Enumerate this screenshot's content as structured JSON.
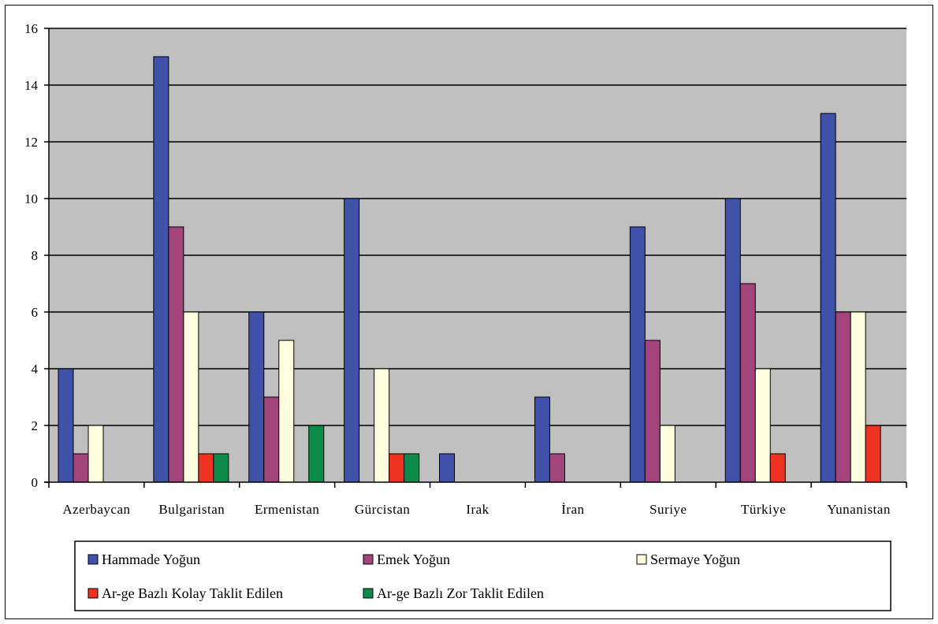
{
  "chart_data": {
    "type": "bar",
    "title": "",
    "xlabel": "",
    "ylabel": "",
    "ylim": [
      0,
      16
    ],
    "yticks": [
      0,
      2,
      4,
      6,
      8,
      10,
      12,
      14,
      16
    ],
    "grid": true,
    "legend_position": "bottom",
    "plot_background": "#c0c0c0",
    "categories": [
      "Azerbaycan",
      "Bulgaristan",
      "Ermenistan",
      "Gürcistan",
      "Irak",
      "İran",
      "Suriye",
      "Türkiye",
      "Yunanistan"
    ],
    "series": [
      {
        "name": "Hammade Yoğun",
        "color": "#3f51a8",
        "values": [
          4,
          15,
          6,
          10,
          1,
          3,
          9,
          10,
          13
        ]
      },
      {
        "name": "Emek Yoğun",
        "color": "#a3447b",
        "values": [
          1,
          9,
          3,
          0,
          0,
          1,
          5,
          7,
          6
        ]
      },
      {
        "name": "Sermaye Yoğun",
        "color": "#ffffe0",
        "values": [
          2,
          6,
          5,
          4,
          0,
          0,
          2,
          4,
          6
        ]
      },
      {
        "name": "Ar-ge Bazlı Kolay Taklit Edilen",
        "color": "#ee3322",
        "values": [
          0,
          1,
          0,
          1,
          0,
          0,
          0,
          1,
          2
        ]
      },
      {
        "name": "Ar-ge Bazlı Zor Taklit Edilen",
        "color": "#0e8a4a",
        "values": [
          0,
          1,
          2,
          1,
          0,
          0,
          0,
          0,
          0
        ]
      }
    ]
  }
}
